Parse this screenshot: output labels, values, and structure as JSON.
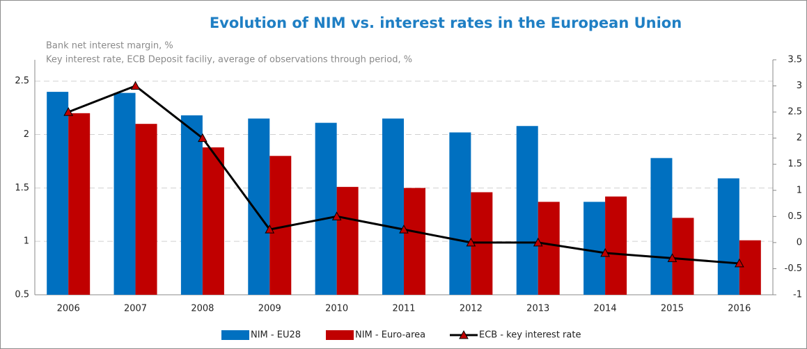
{
  "chart_data": {
    "type": "bar",
    "title": "Evolution of NIM vs. interest rates in the European Union",
    "subtitles": [
      "Bank net interest margin, %",
      "Key interest rate, ECB Deposit faciliy, average of observations through period, %"
    ],
    "categories": [
      "2006",
      "2007",
      "2008",
      "2009",
      "2010",
      "2011",
      "2012",
      "2013",
      "2014",
      "2015",
      "2016"
    ],
    "series": [
      {
        "name": "NIM - EU28",
        "color": "#0070c0",
        "values": [
          2.4,
          2.39,
          2.18,
          2.15,
          2.11,
          2.15,
          2.02,
          2.08,
          1.37,
          1.78,
          1.59
        ]
      },
      {
        "name": "NIM - Euro-area",
        "color": "#c00000",
        "values": [
          2.2,
          2.1,
          1.88,
          1.8,
          1.51,
          1.5,
          1.46,
          1.37,
          1.42,
          1.22,
          1.01
        ]
      },
      {
        "name": "ECB - key interest rate",
        "type": "line",
        "axis": "y2",
        "color": "#000000",
        "marker_color": "#c00000",
        "values": [
          2.5,
          3.0,
          2.0,
          0.25,
          0.5,
          0.25,
          0,
          0,
          -0.2,
          -0.3,
          -0.4
        ]
      }
    ],
    "ylim": [
      0.5,
      2.7
    ],
    "yticks": [
      0.5,
      1,
      1.5,
      2,
      2.5
    ],
    "y2lim": [
      -1,
      3.5
    ],
    "y2ticks": [
      -1,
      -0.5,
      0,
      0.5,
      1,
      1.5,
      2,
      2.5,
      3,
      3.5
    ],
    "grid": true
  }
}
